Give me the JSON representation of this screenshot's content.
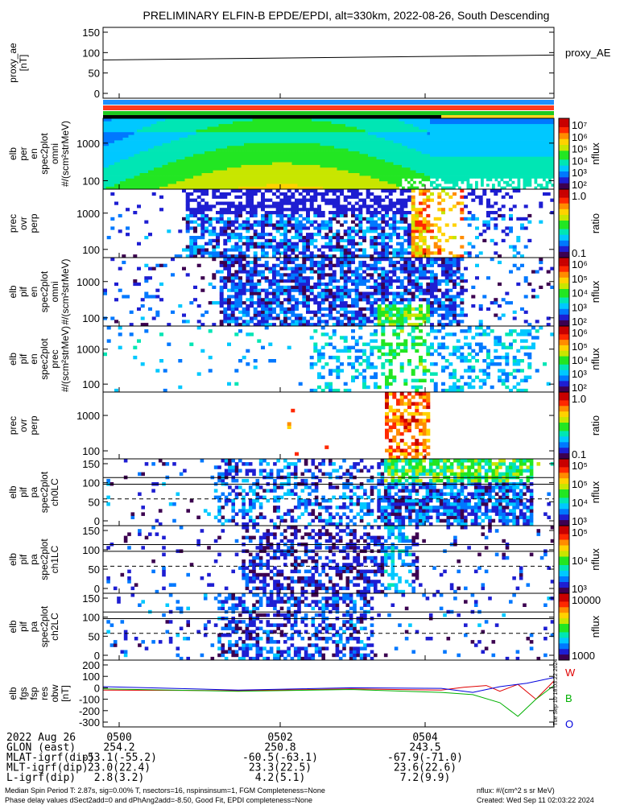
{
  "chart_data": {
    "type": "heatmap",
    "title": "PRELIMINARY ELFIN-B EPDE/EPDI, alt=330km, 2022-08-26, South Descending",
    "colors": {
      "orbit_bar_1": "#1e90ff",
      "orbit_bar_2": "#ff3b1f",
      "orbit_bar_3": "#1ec81e",
      "bar_black": "#000000",
      "bar_yellow": "#ffd21f",
      "fgs_W": "#e00000",
      "fgs_B": "#00b000",
      "fgs_O": "#0000dd"
    },
    "panels": [
      {
        "id": "proxy-ae",
        "ylabel": [
          "proxy_ae",
          "[nT]"
        ],
        "ticks": [
          "150",
          "100",
          "50",
          "0"
        ],
        "right_label": "proxy_AE",
        "series": [
          {
            "name": "proxy_AE",
            "x": [
              0,
              1
            ],
            "y": [
              82,
              94
            ]
          }
        ]
      },
      {
        "id": "elb-perp",
        "ylabel": [
          "elb",
          "per",
          "en",
          "spec2plot",
          "omni",
          "#/(scm²strMeV)"
        ],
        "ticks": [
          "1000",
          "100"
        ],
        "colorbar": {
          "label": "nflux",
          "ticks": [
            "10⁷",
            "10⁶",
            "10⁵",
            "10⁴",
            "10³",
            "10²"
          ]
        }
      },
      {
        "id": "prec-ovr-perp-e",
        "ylabel": [
          "prec",
          "ovr",
          "perp"
        ],
        "ticks": [
          "1000",
          "100"
        ],
        "colorbar": {
          "label": "ratio",
          "ticks": [
            "1.0",
            "0.1"
          ]
        }
      },
      {
        "id": "elb-pif-omni",
        "ylabel": [
          "elb",
          "pif",
          "en",
          "spec2plot",
          "omni",
          "#/(scm²strMeV)"
        ],
        "ticks": [
          "1000",
          "100"
        ],
        "colorbar": {
          "label": "nflux",
          "ticks": [
            "10⁶",
            "10⁵",
            "10⁴",
            "10³",
            "10²"
          ]
        }
      },
      {
        "id": "elb-pif-prec",
        "ylabel": [
          "elb",
          "pif",
          "en",
          "spec2plot",
          "prec",
          "#/(scm²strMeV)"
        ],
        "ticks": [
          "1000",
          "100"
        ],
        "colorbar": {
          "label": "nflux",
          "ticks": [
            "10⁶",
            "10⁵",
            "10⁴",
            "10³",
            "10²"
          ]
        }
      },
      {
        "id": "prec-ovr-perp-i",
        "ylabel": [
          "prec",
          "ovr",
          "perp"
        ],
        "ticks": [
          "1000",
          "100"
        ],
        "colorbar": {
          "label": "ratio",
          "ticks": [
            "1.0",
            "0.1"
          ]
        }
      },
      {
        "id": "pa-ch0",
        "ylabel": [
          "elb",
          "pif",
          "pa",
          "spec2plot",
          "ch0LC"
        ],
        "ticks": [
          "150",
          "100",
          "50",
          "0"
        ],
        "colorbar": {
          "label": "nflux",
          "ticks": [
            "10⁵",
            "10⁵",
            "10⁴",
            "10³"
          ]
        }
      },
      {
        "id": "pa-ch1",
        "ylabel": [
          "elb",
          "pif",
          "pa",
          "spec2plot",
          "ch1LC"
        ],
        "ticks": [
          "150",
          "100",
          "50",
          "0"
        ],
        "colorbar": {
          "label": "nflux",
          "ticks": [
            "10⁵",
            "10⁴",
            "10³"
          ]
        }
      },
      {
        "id": "pa-ch2",
        "ylabel": [
          "elb",
          "pif",
          "pa",
          "spec2plot",
          "ch2LC"
        ],
        "ticks": [
          "150",
          "100",
          "50",
          "0"
        ],
        "colorbar": {
          "label": "nflux",
          "ticks": [
            "10000",
            "1000"
          ]
        }
      },
      {
        "id": "fgs",
        "ylabel": [
          "elb",
          "fgs",
          "fsp",
          "res",
          "obw",
          "[nT]"
        ],
        "ticks": [
          "200",
          "100",
          "0",
          "-100",
          "-200",
          "-300"
        ],
        "legend": [
          "W",
          "B",
          "O"
        ],
        "series": [
          {
            "name": "W",
            "x": [
              0,
              0.3,
              0.55,
              0.75,
              0.8,
              0.85,
              0.88,
              0.92,
              0.96,
              1.0
            ],
            "y": [
              -20,
              -25,
              -10,
              -20,
              5,
              20,
              -30,
              30,
              -100,
              60
            ]
          },
          {
            "name": "B",
            "x": [
              0,
              0.3,
              0.55,
              0.75,
              0.82,
              0.88,
              0.92,
              0.96,
              1.0
            ],
            "y": [
              -10,
              -30,
              -15,
              -40,
              -60,
              -130,
              -250,
              -100,
              20
            ]
          },
          {
            "name": "O",
            "x": [
              0,
              0.3,
              0.55,
              0.75,
              0.82,
              0.88,
              0.94,
              1.0
            ],
            "y": [
              10,
              -20,
              0,
              -5,
              -40,
              10,
              40,
              90
            ]
          }
        ]
      }
    ],
    "side_stamp": "Tue Sep 10 18:03:22 2024",
    "xaxis": {
      "rows": [
        [
          "2022 Aug 26",
          "0500",
          "0502",
          "0504"
        ],
        [
          "GLON (east)",
          "254.2",
          "250.8",
          "243.5"
        ],
        [
          "MLAT-igrf(dip)",
          "-53.1(-55.2)",
          "-60.5(-63.1)",
          "-67.9(-71.0)"
        ],
        [
          "MLT-igrf(dip)",
          "23.0(22.4)",
          "23.3(22.5)",
          "23.6(22.6)"
        ],
        [
          "L-igrf(dip)",
          "2.8(3.2)",
          "4.2(5.1)",
          "7.2(9.9)"
        ]
      ]
    },
    "footer": {
      "left_1": "Median Spin Period T: 2.87s, sig=0.00% T, nsectors=16, nspinsinsum=1, FGM Completeness=None",
      "left_2": "Phase delay values dSect2add=0 and dPhAng2add=-8.50, Good Fit, EPDI completeness=None",
      "right_1": "nflux: #/(cm^2 s sr MeV)",
      "right_2": "Created: Wed Sep 11 02:03:22 2024"
    }
  }
}
